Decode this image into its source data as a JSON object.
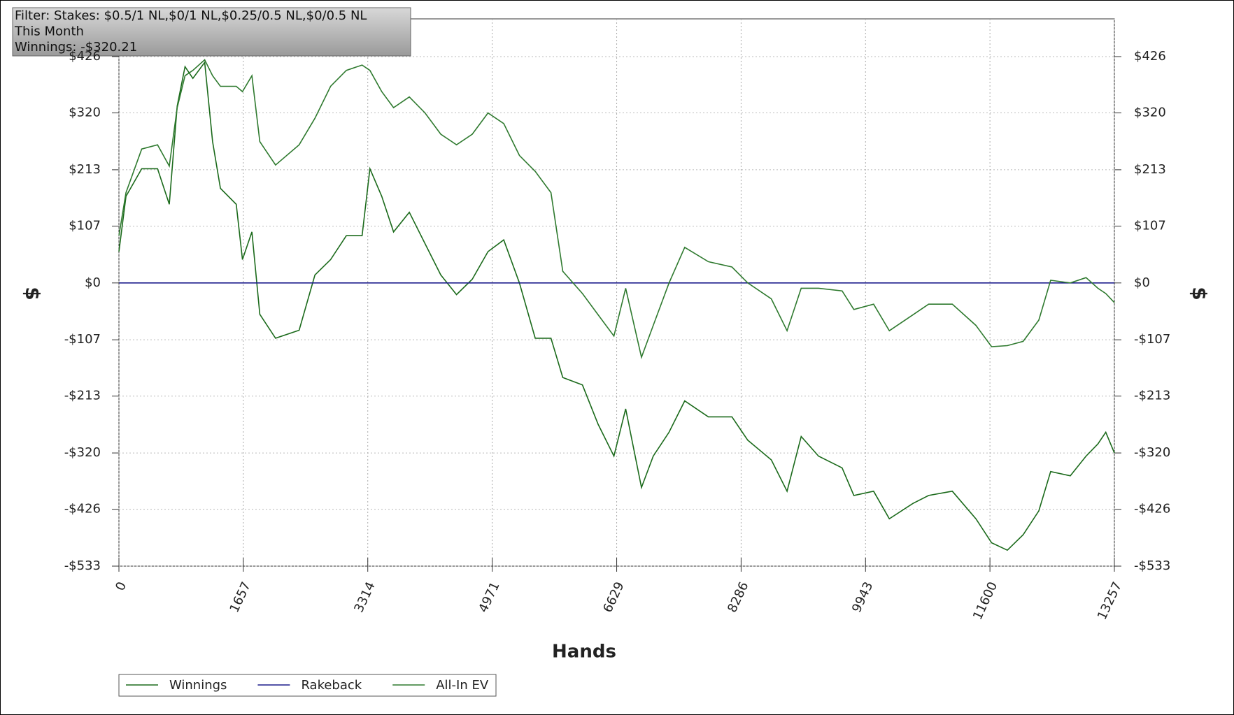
{
  "chart_data": {
    "type": "line",
    "annotations": [
      "Filter: Stakes: $0.5/1 NL,$0/1 NL,$0.25/0.5 NL,$0/0.5 NL",
      "This Month",
      "Winnings: -$320.21"
    ],
    "xlabel": "Hands",
    "ylabel": "$",
    "y2label": "$",
    "x": [
      0,
      94,
      304,
      514,
      671,
      776,
      880,
      985,
      1142,
      1247,
      1352,
      1562,
      1645,
      1771,
      1876,
      2086,
      2400,
      2610,
      2819,
      3029,
      3238,
      3343,
      3500,
      3658,
      3867,
      4077,
      4286,
      4496,
      4706,
      4915,
      5125,
      5334,
      5544,
      5754,
      5911,
      6173,
      6382,
      6592,
      6749,
      6959,
      7116,
      7326,
      7535,
      7850,
      8164,
      8374,
      8688,
      8898,
      9086,
      9317,
      9631,
      9788,
      10050,
      10260,
      10574,
      10784,
      11098,
      11413,
      11622,
      11832,
      12042,
      12251,
      12408,
      12670,
      12880,
      13037,
      13142,
      13257
    ],
    "series": [
      {
        "name": "Winnings",
        "color": "#1b6a1b",
        "values": [
          59,
          163,
          215,
          215,
          148,
          333,
          407,
          385,
          415,
          266,
          178,
          148,
          44,
          96,
          -59,
          -104,
          -89,
          15,
          44,
          89,
          89,
          215,
          163,
          96,
          133,
          74,
          15,
          -22,
          7,
          59,
          81,
          0,
          -104,
          -104,
          -178,
          -192,
          -266,
          -326,
          -237,
          -385,
          -326,
          -281,
          -222,
          -252,
          -252,
          -296,
          -333,
          -392,
          -289,
          -326,
          -348,
          -400,
          -392,
          -444,
          -415,
          -400,
          -392,
          -444,
          -489,
          -503,
          -474,
          -429,
          -355,
          -363,
          -326,
          -303,
          -281,
          -320
        ]
      },
      {
        "name": "Rakeback",
        "color": "#1c1c8c",
        "x": [
          0,
          13257
        ],
        "values": [
          0,
          0
        ]
      },
      {
        "name": "All-In EV",
        "color": "#2f7a2f",
        "values": [
          89,
          170,
          252,
          260,
          220,
          330,
          390,
          400,
          420,
          390,
          370,
          370,
          360,
          390,
          266,
          222,
          260,
          310,
          370,
          400,
          410,
          400,
          360,
          330,
          350,
          320,
          280,
          260,
          280,
          320,
          300,
          240,
          210,
          170,
          22,
          -20,
          -60,
          -100,
          -10,
          -140,
          -80,
          0,
          67,
          40,
          30,
          0,
          -30,
          -90,
          -10,
          -10,
          -15,
          -50,
          -40,
          -90,
          -60,
          -40,
          -40,
          -80,
          -120,
          -118,
          -110,
          -70,
          5,
          0,
          10,
          -10,
          -20,
          -37
        ]
      }
    ],
    "xlim": [
      0,
      13257
    ],
    "xticks": [
      0,
      1657,
      3314,
      4971,
      6629,
      8286,
      9943,
      11600,
      13257
    ],
    "ylim": [
      -533,
      497
    ],
    "yticks": [
      {
        "value": -533,
        "label": "-$533"
      },
      {
        "value": -426,
        "label": "-$426"
      },
      {
        "value": -320,
        "label": "-$320"
      },
      {
        "value": -213,
        "label": "-$213"
      },
      {
        "value": -107,
        "label": "-$107"
      },
      {
        "value": 0,
        "label": "$0"
      },
      {
        "value": 107,
        "label": "$107"
      },
      {
        "value": 213,
        "label": "$213"
      },
      {
        "value": 320,
        "label": "$320"
      },
      {
        "value": 426,
        "label": "$426"
      }
    ],
    "grid": true
  }
}
